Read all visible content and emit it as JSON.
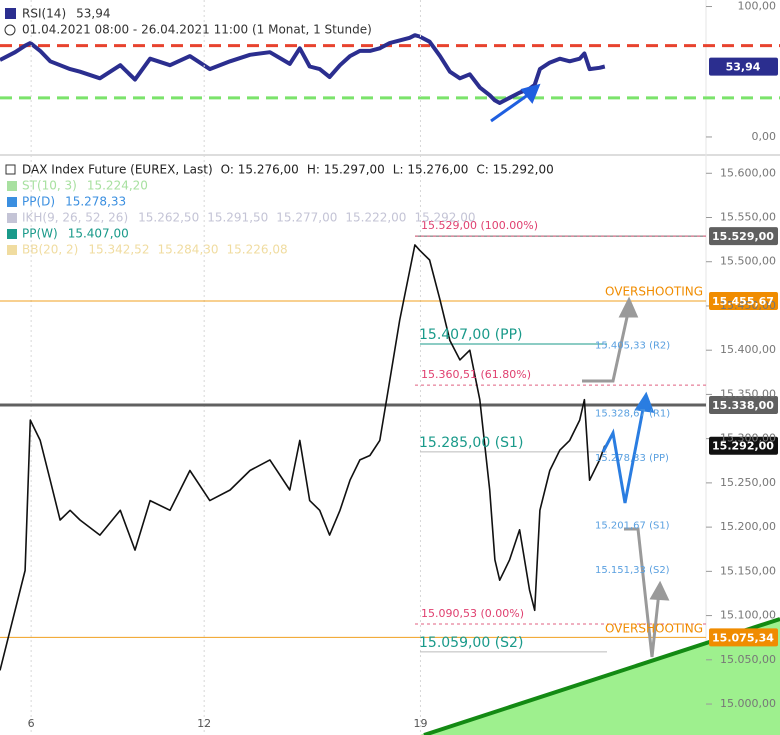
{
  "chart_data": [
    {
      "type": "line",
      "subtitle": "01.04.2021 08:00 - 26.04.2021 11:00  (1 Monat, 1 Stunde)",
      "last": {
        "value": 53.94,
        "label": "53,94"
      },
      "xlim": [
        0.28,
        16.6
      ],
      "ylim": [
        -10,
        105
      ],
      "yticks": [
        {
          "value": 100,
          "label": "100,00"
        },
        {
          "value": 0,
          "label": "0,00"
        }
      ],
      "levels": [
        {
          "value": 70,
          "color": "#e8432e"
        },
        {
          "value": 30,
          "color": "#7be36b"
        }
      ],
      "x": [
        0.28,
        0.63,
        0.86,
        0.98,
        1.21,
        1.44,
        1.67,
        1.9,
        2.13,
        2.59,
        3.06,
        3.4,
        3.75,
        4.21,
        4.67,
        5.13,
        5.6,
        6.06,
        6.52,
        6.98,
        7.21,
        7.44,
        7.67,
        7.9,
        8.14,
        8.37,
        8.6,
        8.83,
        9.06,
        9.29,
        9.52,
        9.75,
        9.87,
        9.98,
        10.21,
        10.45,
        10.68,
        10.91,
        11.14,
        11.37,
        11.6,
        11.72,
        11.83,
        12.06,
        12.29,
        12.52,
        12.64,
        12.76,
        12.99,
        13.22,
        13.45,
        13.68,
        13.79,
        13.91,
        14.14,
        14.26
      ],
      "series": [
        {
          "name": "RSI(14)",
          "color": "#2b2e8f",
          "values": [
            59,
            65,
            70,
            72,
            66,
            58,
            55,
            52,
            50,
            45,
            55,
            44,
            60,
            55,
            62,
            52,
            58,
            63,
            65,
            56,
            68,
            54,
            52,
            46,
            55,
            62,
            66,
            66,
            68,
            72,
            74,
            76,
            78,
            77,
            73,
            62,
            50,
            45,
            48,
            38,
            32,
            28,
            26,
            30,
            34,
            37,
            40,
            52,
            57,
            60,
            58,
            60,
            64,
            52,
            53,
            54
          ]
        }
      ]
    },
    {
      "type": "line",
      "ohlc": [
        "O: 15.276,00",
        "H: 15.297,00",
        "L: 15.276,00",
        "C: 15.292,00"
      ],
      "indicators": [
        {
          "name": "ST(10, 3)",
          "color": "#a8e0a0",
          "values": [
            "15.224,20"
          ]
        },
        {
          "name": "PP(D)",
          "color": "#3b8fe0",
          "values": [
            "15.278,33"
          ]
        },
        {
          "name": "IKH(9, 26, 52, 26)",
          "color": "#c4c4d6",
          "values": [
            "15.262,50",
            "15.291,50",
            "15.277,00",
            "15.222,00",
            "15.292,00"
          ]
        },
        {
          "name": "PP(W)",
          "color": "#1a9a8a",
          "values": [
            "15.407,00"
          ]
        },
        {
          "name": "BB(20, 2)",
          "color": "#f0dca0",
          "values": [
            "15.342,52",
            "15.284,30",
            "15.226,08"
          ]
        }
      ],
      "xlim": [
        0.28,
        16.6
      ],
      "ylim": [
        14965,
        15615
      ],
      "xticks": [
        {
          "value": 1,
          "label": "6"
        },
        {
          "value": 5,
          "label": "12"
        },
        {
          "value": 10,
          "label": "19"
        }
      ],
      "grid": true,
      "yticks": [
        {
          "value": 15000,
          "label": "15.000,00"
        },
        {
          "value": 15050,
          "label": "15.050,00"
        },
        {
          "value": 15100,
          "label": "15.100,00"
        },
        {
          "value": 15150,
          "label": "15.150,00"
        },
        {
          "value": 15200,
          "label": "15.200,00"
        },
        {
          "value": 15250,
          "label": "15.250,00"
        },
        {
          "value": 15300,
          "label": "15.300,00"
        },
        {
          "value": 15350,
          "label": "15.350,00"
        },
        {
          "value": 15400,
          "label": "15.400,00"
        },
        {
          "value": 15450,
          "label": "15.450,00"
        },
        {
          "value": 15500,
          "label": "15.500,00"
        },
        {
          "value": 15550,
          "label": "15.550,00"
        },
        {
          "value": 15600,
          "label": "15.600,00"
        }
      ],
      "price_levels": [
        {
          "value": 15529,
          "label": "15.529,00",
          "color": "#606060"
        },
        {
          "value": 15455.67,
          "label": "15.455,67",
          "color": "#f08c00"
        },
        {
          "value": 15338,
          "label": "15.338,00",
          "color": "#606060"
        },
        {
          "value": 15292,
          "label": "15.292,00",
          "color": "#111111"
        },
        {
          "value": 15075.34,
          "label": "15.075,34",
          "color": "#f08c00"
        }
      ],
      "fib_levels": [
        {
          "value": 15529,
          "label": "15.529,00 (100.00%)"
        },
        {
          "value": 15360.51,
          "label": "15.360,51 (61.80%)"
        },
        {
          "value": 15090.53,
          "label": "15.090,53 (0.00%)"
        }
      ],
      "weekly_pivots": [
        {
          "value": 15407,
          "label": "15.407,00 (PP)"
        },
        {
          "value": 15285,
          "label": "15.285,00 (S1)"
        },
        {
          "value": 15059,
          "label": "15.059,00 (S2)"
        }
      ],
      "daily_pivots": [
        {
          "value": 15405.33,
          "label": "15.405,33 (R2)"
        },
        {
          "value": 15328.67,
          "label": "15.328,67 (R1)"
        },
        {
          "value": 15278.33,
          "label": "15.278,33 (PP)"
        },
        {
          "value": 15201.67,
          "label": "15.201,67 (S1)"
        },
        {
          "value": 15151.33,
          "label": "15.151,33 (S2)"
        }
      ],
      "annotations": [
        "OVERSHOOTING",
        "OVERSHOOTING"
      ],
      "x": [
        0.28,
        0.63,
        0.86,
        0.98,
        1.21,
        1.44,
        1.67,
        1.9,
        2.13,
        2.59,
        3.06,
        3.4,
        3.75,
        4.21,
        4.67,
        5.13,
        5.6,
        6.06,
        6.52,
        6.98,
        7.21,
        7.44,
        7.67,
        7.9,
        8.14,
        8.37,
        8.6,
        8.83,
        9.06,
        9.29,
        9.52,
        9.75,
        9.87,
        9.98,
        10.21,
        10.45,
        10.68,
        10.91,
        11.14,
        11.37,
        11.6,
        11.72,
        11.83,
        12.06,
        12.29,
        12.52,
        12.64,
        12.76,
        12.99,
        13.22,
        13.45,
        13.68,
        13.79,
        13.91,
        14.14,
        14.26
      ],
      "series": [
        {
          "name": "DAX Index Future (EUREX, Last)",
          "color": "#111111",
          "values": [
            15038,
            15106,
            15151,
            15321,
            15298,
            15253,
            15208,
            15219,
            15208,
            15191,
            15219,
            15174,
            15230,
            15219,
            15264,
            15230,
            15242,
            15264,
            15276,
            15242,
            15298,
            15230,
            15219,
            15191,
            15219,
            15253,
            15276,
            15281,
            15298,
            15366,
            15434,
            15490,
            15519,
            15513,
            15502,
            15457,
            15411,
            15389,
            15400,
            15344,
            15242,
            15163,
            15140,
            15163,
            15197,
            15129,
            15106,
            15219,
            15264,
            15287,
            15298,
            15321,
            15344,
            15253,
            15276,
            15292
          ]
        }
      ]
    }
  ]
}
